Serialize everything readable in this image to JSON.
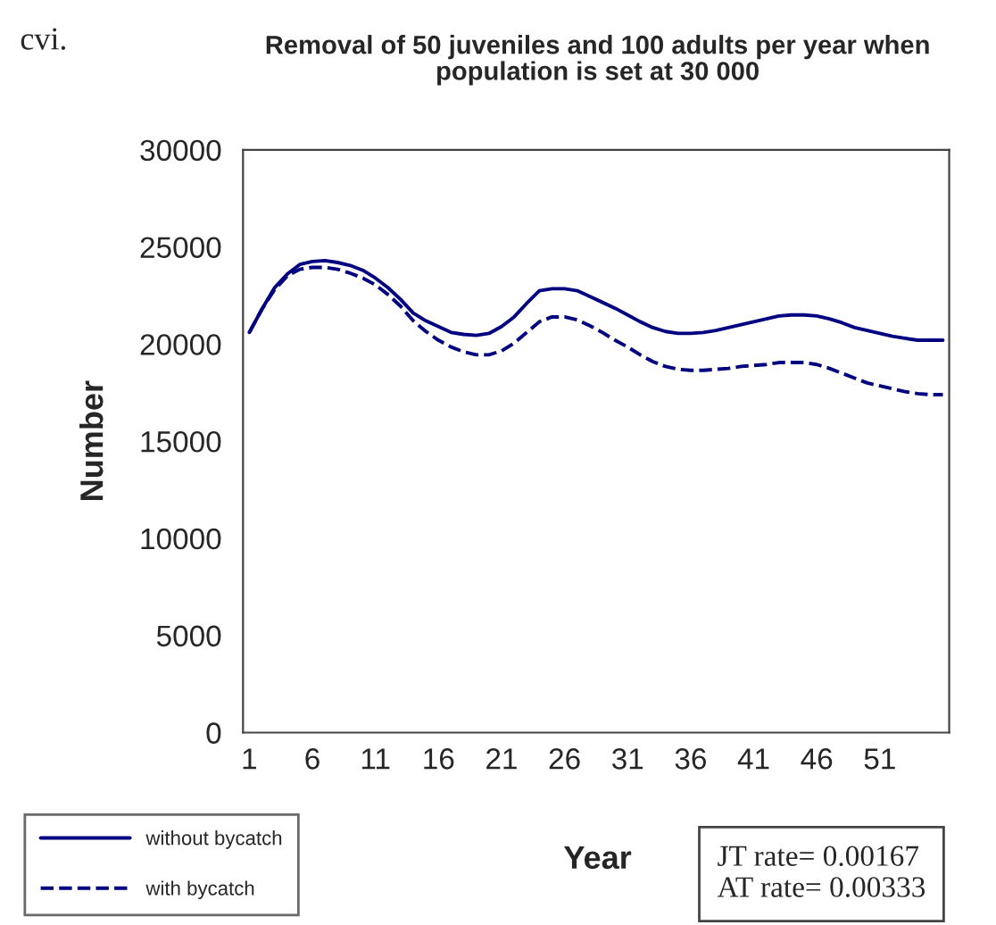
{
  "chart_data": {
    "type": "line",
    "title": "Removal of 50 juveniles and 100 adults per year when\npopulation is set at 30 000",
    "xlabel": "Year",
    "ylabel": "Number",
    "categories": [
      "1",
      null,
      null,
      null,
      null,
      "6",
      null,
      null,
      null,
      null,
      "11",
      null,
      null,
      null,
      null,
      "16",
      null,
      null,
      null,
      null,
      "21",
      null,
      null,
      null,
      null,
      "26",
      null,
      null,
      null,
      null,
      "31",
      null,
      null,
      null,
      null,
      "36",
      null,
      null,
      null,
      null,
      "41",
      null,
      null,
      null,
      null,
      "46",
      null,
      null,
      null,
      null,
      "51",
      null,
      null,
      null,
      null,
      null
    ],
    "series": [
      {
        "name": "without bycatch",
        "color": "#000080",
        "line_style": "solid",
        "values": [
          20600,
          21800,
          22900,
          23600,
          24100,
          24250,
          24300,
          24200,
          24050,
          23800,
          23400,
          22900,
          22300,
          21600,
          21200,
          20900,
          20600,
          20500,
          20450,
          20550,
          20900,
          21400,
          22100,
          22750,
          22850,
          22850,
          22750,
          22450,
          22150,
          21850,
          21500,
          21150,
          20850,
          20650,
          20550,
          20550,
          20600,
          20700,
          20850,
          21000,
          21150,
          21300,
          21450,
          21500,
          21500,
          21450,
          21300,
          21100,
          20850,
          20700,
          20550,
          20400,
          20300,
          20200,
          20200,
          20200
        ]
      },
      {
        "name": "with bycatch",
        "color": "#000080",
        "line_style": "dashed",
        "values": [
          20600,
          21800,
          22800,
          23500,
          23850,
          23950,
          23950,
          23850,
          23650,
          23400,
          23050,
          22550,
          21950,
          21200,
          20650,
          20200,
          19850,
          19600,
          19450,
          19450,
          19650,
          20050,
          20600,
          21150,
          21400,
          21400,
          21250,
          20950,
          20600,
          20200,
          19850,
          19450,
          19100,
          18850,
          18700,
          18650,
          18650,
          18700,
          18750,
          18850,
          18900,
          18950,
          19050,
          19050,
          19050,
          18950,
          18750,
          18500,
          18250,
          18000,
          17850,
          17700,
          17550,
          17450,
          17400,
          17400
        ]
      }
    ],
    "ylim": [
      0,
      30000
    ],
    "yticks": [
      0,
      5000,
      10000,
      15000,
      20000,
      25000,
      30000
    ],
    "legend": "bottom left",
    "grid": false,
    "annotations": [
      "cvi.",
      "JT rate= 0.00167\nAT rate= 0.00333"
    ]
  }
}
